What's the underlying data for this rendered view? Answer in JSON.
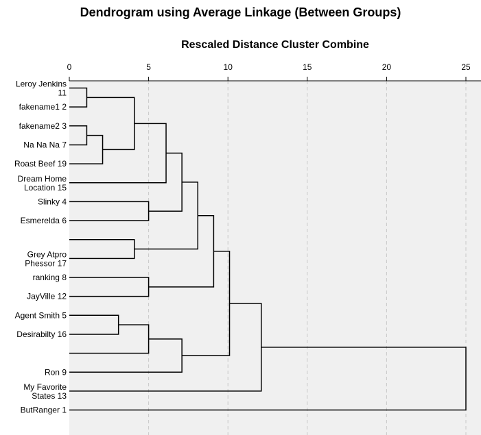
{
  "chart_data": {
    "type": "dendrogram",
    "title": "Dendrogram using Average Linkage (Between Groups)",
    "xlabel": "Rescaled Distance Cluster Combine",
    "xlim": [
      0,
      25
    ],
    "xticks": [
      0,
      5,
      10,
      15,
      20,
      25
    ],
    "grid": true,
    "leaves": [
      {
        "label": "Leroy Jenkins\n11"
      },
      {
        "label": "fakename1 2"
      },
      {
        "label": "fakename2 3"
      },
      {
        "label": "Na Na Na 7"
      },
      {
        "label": "Roast Beef 19"
      },
      {
        "label": "Dream Home\nLocation 15"
      },
      {
        "label": "Slinky 4"
      },
      {
        "label": "Esmerelda 6"
      },
      {
        "label": ""
      },
      {
        "label": "Grey Atpro\nPhessor 17"
      },
      {
        "label": "ranking 8"
      },
      {
        "label": "JayVille 12"
      },
      {
        "label": "Agent Smith 5"
      },
      {
        "label": "Desirabilty 16"
      },
      {
        "label": ""
      },
      {
        "label": "Ron 9"
      },
      {
        "label": "My Favorite\nStates 13"
      },
      {
        "label": "ButRanger 1"
      }
    ],
    "merges": [
      {
        "id": "A",
        "children": [
          0,
          1
        ],
        "distance": 1.1
      },
      {
        "id": "B",
        "children": [
          2,
          3
        ],
        "distance": 1.1
      },
      {
        "id": "C",
        "children": [
          "B",
          4
        ],
        "distance": 2.1
      },
      {
        "id": "D",
        "children": [
          "A",
          "C"
        ],
        "distance": 4.1
      },
      {
        "id": "E",
        "children": [
          "D",
          5
        ],
        "distance": 6.1
      },
      {
        "id": "F",
        "children": [
          6,
          7
        ],
        "distance": 5.0
      },
      {
        "id": "G",
        "children": [
          "E",
          "F"
        ],
        "distance": 7.1
      },
      {
        "id": "H",
        "children": [
          8,
          9
        ],
        "distance": 4.1
      },
      {
        "id": "I",
        "children": [
          "G",
          "H"
        ],
        "distance": 8.1
      },
      {
        "id": "J",
        "children": [
          10,
          11
        ],
        "distance": 5.0
      },
      {
        "id": "K",
        "children": [
          "I",
          "J"
        ],
        "distance": 9.1
      },
      {
        "id": "L",
        "children": [
          12,
          13
        ],
        "distance": 3.1
      },
      {
        "id": "M",
        "children": [
          "L",
          14
        ],
        "distance": 5.0
      },
      {
        "id": "N",
        "children": [
          "M",
          15
        ],
        "distance": 7.1
      },
      {
        "id": "O",
        "children": [
          "K",
          "N"
        ],
        "distance": 10.1
      },
      {
        "id": "P",
        "children": [
          "O",
          16
        ],
        "distance": 12.1
      },
      {
        "id": "Q",
        "children": [
          "P",
          17
        ],
        "distance": 25.0
      }
    ]
  }
}
